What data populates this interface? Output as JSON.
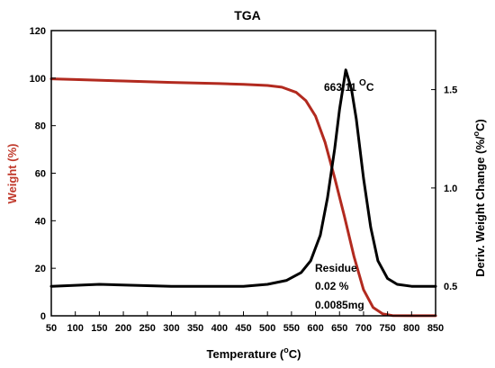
{
  "chart_data": {
    "type": "line",
    "title": "TGA",
    "xlabel": "Temperature (°C)",
    "xlabel_parts": [
      "Temperature (",
      "o",
      "C)"
    ],
    "ylabel_left": "Weight (%)",
    "ylabel_right": "Deriv. Weight Change (%/°C)",
    "ylabel_right_parts": [
      "Deriv. Weight Change (%/",
      "o",
      "C)"
    ],
    "xlim": [
      50,
      850
    ],
    "ylim_left": [
      0,
      120
    ],
    "ylim_right": [
      0.35,
      1.8
    ],
    "x_ticks": [
      "50",
      "100",
      "150",
      "200",
      "250",
      "300",
      "350",
      "400",
      "450",
      "500",
      "550",
      "600",
      "650",
      "700",
      "750",
      "800",
      "850"
    ],
    "y_left_ticks": [
      "0",
      "20",
      "40",
      "60",
      "80",
      "100",
      "120"
    ],
    "y_right_ticks": [
      "0.5",
      "1.0",
      "1.5"
    ],
    "series": [
      {
        "axis": "left",
        "color": "#b22a1f",
        "x": [
          50,
          100,
          200,
          300,
          400,
          450,
          500,
          530,
          560,
          580,
          600,
          620,
          640,
          660,
          680,
          700,
          720,
          740,
          760,
          800,
          850
        ],
        "y": [
          99.7,
          99.4,
          98.8,
          98.2,
          97.7,
          97.4,
          96.9,
          96.2,
          94.0,
          90.5,
          84.0,
          73.0,
          58.0,
          42.0,
          25.0,
          11.0,
          3.5,
          0.8,
          0.1,
          0.02,
          0.02
        ]
      },
      {
        "axis": "right",
        "color": "#000000",
        "x": [
          50,
          150,
          300,
          450,
          500,
          540,
          570,
          590,
          610,
          625,
          640,
          650,
          663,
          675,
          685,
          700,
          715,
          730,
          750,
          770,
          800,
          850
        ],
        "y": [
          0.5,
          0.51,
          0.5,
          0.5,
          0.51,
          0.53,
          0.57,
          0.63,
          0.76,
          0.95,
          1.2,
          1.4,
          1.6,
          1.5,
          1.35,
          1.05,
          0.8,
          0.63,
          0.54,
          0.51,
          0.5,
          0.5
        ]
      }
    ],
    "annotations": {
      "peak_value": "663.11",
      "peak_super": "O",
      "peak_unit": "C",
      "residue_label": "Residue",
      "residue_percent": "0.02 %",
      "residue_mass": "0.0085mg"
    },
    "grid": false,
    "legend": "none"
  }
}
